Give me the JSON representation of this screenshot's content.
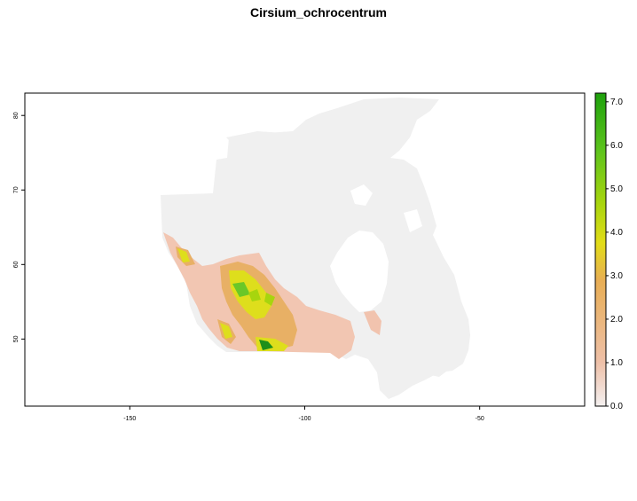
{
  "title": "Cirsium_ochrocentrum",
  "map": {
    "x_range": [
      -180,
      -20
    ],
    "y_range": [
      41,
      83
    ],
    "x_ticks": [
      {
        "value": -150,
        "label": "-150"
      },
      {
        "value": -100,
        "label": "-100"
      },
      {
        "value": -50,
        "label": "-50"
      }
    ],
    "y_ticks": [
      {
        "value": 50,
        "label": "50"
      },
      {
        "value": 60,
        "label": "60"
      },
      {
        "value": 70,
        "label": "70"
      },
      {
        "value": 80,
        "label": "80"
      }
    ]
  },
  "legend": {
    "min": 0,
    "max": 7.2,
    "ticks": [
      {
        "value": 0,
        "label": "0.0"
      },
      {
        "value": 1,
        "label": "1.0"
      },
      {
        "value": 2,
        "label": "2.0"
      },
      {
        "value": 3,
        "label": "3.0"
      },
      {
        "value": 4,
        "label": "4.0"
      },
      {
        "value": 5,
        "label": "5.0"
      },
      {
        "value": 6,
        "label": "6.0"
      },
      {
        "value": 7,
        "label": "7.0"
      }
    ],
    "colors": [
      "#f2f2f2",
      "#eec0a8",
      "#e8ae55",
      "#e2dc18",
      "#a7d50e",
      "#5cc31d",
      "#1ea10d"
    ]
  },
  "colors": {
    "background_land": "#f0f0f0",
    "low_suitability": "#f1bba2",
    "mid_suitability": "#e8ae55",
    "high_suitability": "#dede1c",
    "very_high_suitability": "#2e9d10"
  }
}
